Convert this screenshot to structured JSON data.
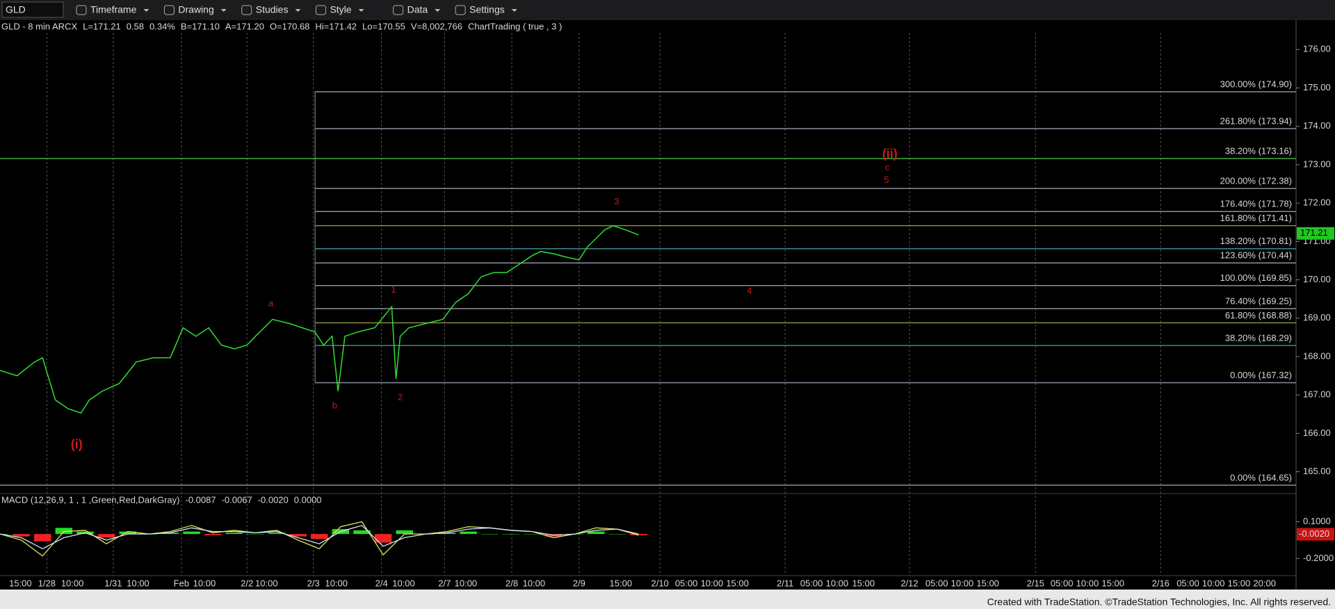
{
  "toolbar": {
    "symbol": "GLD",
    "items": [
      "Timeframe",
      "Drawing",
      "Studies",
      "Style",
      "Data",
      "Settings"
    ]
  },
  "footer": "Created with TradeStation. ©TradeStation Technologies, Inc. All rights reserved.",
  "chart_data": {
    "type": "line",
    "header": [
      {
        "text": "GLD - 8 min  ARCX",
        "color": "#e0e0e0"
      },
      {
        "text": "L=171.21",
        "color": "#3ddc3d"
      },
      {
        "text": "0.58",
        "color": "#3ddc3d"
      },
      {
        "text": "0.34%",
        "color": "#3ddc3d"
      },
      {
        "text": "B=171.10",
        "color": "#e0e0e0"
      },
      {
        "text": "A=171.20",
        "color": "#e0e0e0"
      },
      {
        "text": "O=170.68",
        "color": "#3ddc3d"
      },
      {
        "text": "Hi=171.42",
        "color": "#e0e0e0"
      },
      {
        "text": "Lo=170.55",
        "color": "#e0e0e0"
      },
      {
        "text": "V=8,002,766",
        "color": "#e0e0e0"
      },
      {
        "text": "ChartTrading ( true , 3 )",
        "color": "#e0e0e0"
      }
    ],
    "xlim": [
      0,
      1522
    ],
    "xticks": [
      {
        "value": 24,
        "label": "15:00"
      },
      {
        "value": 55,
        "label": "1/28"
      },
      {
        "value": 85,
        "label": "10:00"
      },
      {
        "value": 133,
        "label": "1/31"
      },
      {
        "value": 162,
        "label": "10:00"
      },
      {
        "value": 213,
        "label": "Feb"
      },
      {
        "value": 240,
        "label": "10:00"
      },
      {
        "value": 290,
        "label": "2/2"
      },
      {
        "value": 313,
        "label": "10:00"
      },
      {
        "value": 368,
        "label": "2/3"
      },
      {
        "value": 395,
        "label": "10:00"
      },
      {
        "value": 448,
        "label": "2/4"
      },
      {
        "value": 474,
        "label": "10:00"
      },
      {
        "value": 522,
        "label": "2/7"
      },
      {
        "value": 547,
        "label": "10:00"
      },
      {
        "value": 601,
        "label": "2/8"
      },
      {
        "value": 627,
        "label": "10:00"
      },
      {
        "value": 680,
        "label": "2/9"
      },
      {
        "value": 729,
        "label": "15:00"
      },
      {
        "value": 775,
        "label": "2/10"
      },
      {
        "value": 806,
        "label": "05:00"
      },
      {
        "value": 836,
        "label": "10:00"
      },
      {
        "value": 866,
        "label": "15:00"
      },
      {
        "value": 922,
        "label": "2/11"
      },
      {
        "value": 953,
        "label": "05:00"
      },
      {
        "value": 983,
        "label": "10:00"
      },
      {
        "value": 1014,
        "label": "15:00"
      },
      {
        "value": 1068,
        "label": "2/12"
      },
      {
        "value": 1100,
        "label": "05:00"
      },
      {
        "value": 1130,
        "label": "10:00"
      },
      {
        "value": 1160,
        "label": "15:00"
      },
      {
        "value": 1216,
        "label": "2/15"
      },
      {
        "value": 1247,
        "label": "05:00"
      },
      {
        "value": 1277,
        "label": "10:00"
      },
      {
        "value": 1307,
        "label": "15:00"
      },
      {
        "value": 1363,
        "label": "2/16"
      },
      {
        "value": 1395,
        "label": "05:00"
      },
      {
        "value": 1425,
        "label": "10:00"
      },
      {
        "value": 1455,
        "label": "15:00"
      },
      {
        "value": 1485,
        "label": "20:00"
      }
    ],
    "ylim": [
      164.43,
      176.73
    ],
    "yticks": [
      {
        "value": 176,
        "label": "176.00"
      },
      {
        "value": 175,
        "label": "175.00"
      },
      {
        "value": 174,
        "label": "174.00"
      },
      {
        "value": 173,
        "label": "173.00"
      },
      {
        "value": 172,
        "label": "172.00"
      },
      {
        "value": 171,
        "label": "171.00"
      },
      {
        "value": 170,
        "label": "170.00"
      },
      {
        "value": 169,
        "label": "169.00"
      },
      {
        "value": 168,
        "label": "168.00"
      },
      {
        "value": 167,
        "label": "167.00"
      },
      {
        "value": 166,
        "label": "166.00"
      },
      {
        "value": 165,
        "label": "165.00"
      }
    ],
    "last_price": {
      "value": 171.21,
      "label": "171.21",
      "color": "#22c522"
    },
    "series": [
      {
        "name": "GLD",
        "color": "#2fe02f",
        "x": [
          0,
          20,
          40,
          50,
          65,
          80,
          95,
          105,
          120,
          140,
          160,
          180,
          200,
          215,
          230,
          245,
          260,
          275,
          290,
          300,
          310,
          320,
          340,
          355,
          370,
          380,
          390,
          397,
          405,
          420,
          440,
          460,
          465,
          470,
          480,
          500,
          520,
          535,
          550,
          565,
          580,
          595,
          610,
          625,
          635,
          650,
          665,
          680,
          690,
          700,
          710,
          720,
          735,
          750
        ],
        "values": [
          167.64,
          167.5,
          167.85,
          167.97,
          166.87,
          166.64,
          166.53,
          166.87,
          167.1,
          167.3,
          167.86,
          167.97,
          167.97,
          168.75,
          168.53,
          168.75,
          168.3,
          168.2,
          168.3,
          168.53,
          168.75,
          168.97,
          168.86,
          168.75,
          168.64,
          168.3,
          168.53,
          167.1,
          168.53,
          168.64,
          168.75,
          169.3,
          167.42,
          168.53,
          168.75,
          168.86,
          168.97,
          169.41,
          169.64,
          170.08,
          170.19,
          170.19,
          170.41,
          170.63,
          170.74,
          170.68,
          170.59,
          170.52,
          170.86,
          171.08,
          171.3,
          171.41,
          171.3,
          171.17
        ]
      }
    ],
    "fib_start_x": 370,
    "levels": [
      {
        "label": "300.00% (174.90)",
        "value": 174.9,
        "color": "#8a90a0"
      },
      {
        "label": "261.80% (173.94)",
        "value": 173.94,
        "color": "#8a90a0"
      },
      {
        "label": "38.20% (173.16)",
        "value": 173.16,
        "color": "#3fae3f",
        "full": true
      },
      {
        "label": "200.00% (172.38)",
        "value": 172.38,
        "color": "#8a90a0"
      },
      {
        "label": "176.40% (171.78)",
        "value": 171.78,
        "color": "#8a90a0"
      },
      {
        "label": "161.80% (171.41)",
        "value": 171.41,
        "color": "#8c8c3a"
      },
      {
        "label": "138.20% (170.81)",
        "value": 170.81,
        "color": "#3a8c8c"
      },
      {
        "label": "123.60% (170.44)",
        "value": 170.44,
        "color": "#8a90a0"
      },
      {
        "label": "100.00% (169.85)",
        "value": 169.85,
        "color": "#8a90a0"
      },
      {
        "label": "76.40% (169.25)",
        "value": 169.25,
        "color": "#8a90a0"
      },
      {
        "label": "61.80% (168.88)",
        "value": 168.88,
        "color": "#8c8c3a"
      },
      {
        "label": "38.20% (168.29)",
        "value": 168.29,
        "color": "#3a8c8c"
      },
      {
        "label": "0.00% (167.32)",
        "value": 167.32,
        "color": "#8a90a0"
      },
      {
        "label": "0.00% (164.65)",
        "value": 164.65,
        "color": "#8a90a0",
        "full": true
      }
    ],
    "annotations": [
      {
        "text": "(i)",
        "x": 90,
        "y": 165.69,
        "big": true
      },
      {
        "text": "a",
        "x": 318,
        "y": 169.37
      },
      {
        "text": "b",
        "x": 393,
        "y": 166.71
      },
      {
        "text": "1",
        "x": 462,
        "y": 169.73
      },
      {
        "text": "2",
        "x": 470,
        "y": 166.93
      },
      {
        "text": "3",
        "x": 724,
        "y": 172.03
      },
      {
        "text": "4",
        "x": 880,
        "y": 169.7
      },
      {
        "text": "(ii)",
        "x": 1045,
        "y": 173.27,
        "big": true
      },
      {
        "text": "c",
        "x": 1042,
        "y": 172.92
      },
      {
        "text": "5",
        "x": 1041,
        "y": 172.59
      }
    ],
    "macd": {
      "title": "MACD (12,26,9, 1 , 1 ,Green,Red,DarkGray)",
      "readings": [
        {
          "text": "-0.0087",
          "color": "#e6e65a"
        },
        {
          "text": "-0.0067",
          "color": "#7fd4ff"
        },
        {
          "text": "-0.0020",
          "color": "#ff4040"
        },
        {
          "text": "0.0000",
          "color": "#3ddc3d"
        }
      ],
      "ylim": [
        -0.34,
        0.33
      ],
      "yticks": [
        {
          "value": 0.1,
          "label": "0.1000"
        },
        {
          "value": -0.2,
          "label": "-0.2000"
        }
      ],
      "x": [
        0,
        25,
        50,
        75,
        100,
        125,
        150,
        175,
        200,
        225,
        250,
        275,
        300,
        325,
        350,
        375,
        400,
        425,
        450,
        475,
        500,
        525,
        550,
        575,
        600,
        625,
        650,
        675,
        700,
        725,
        750
      ],
      "series": [
        {
          "name": "MACD",
          "color": "#e6e65a",
          "values": [
            0.0,
            -0.05,
            -0.18,
            0.02,
            0.03,
            -0.08,
            0.02,
            0.0,
            0.02,
            0.07,
            0.01,
            0.03,
            0.01,
            0.03,
            -0.05,
            -0.12,
            0.06,
            0.1,
            -0.17,
            0.0,
            0.0,
            0.02,
            0.06,
            0.05,
            0.03,
            0.02,
            -0.03,
            0.0,
            0.05,
            0.04,
            -0.01
          ]
        },
        {
          "name": "Signal",
          "color": "#cfe8ff",
          "values": [
            0.0,
            -0.03,
            -0.12,
            -0.03,
            0.01,
            -0.05,
            0.0,
            0.0,
            0.01,
            0.05,
            0.02,
            0.02,
            0.01,
            0.02,
            -0.03,
            -0.08,
            0.02,
            0.07,
            -0.1,
            -0.03,
            0.0,
            0.01,
            0.04,
            0.05,
            0.03,
            0.02,
            -0.01,
            0.0,
            0.03,
            0.04,
            0.0
          ]
        }
      ],
      "hist": [
        0,
        -0.02,
        -0.06,
        0.05,
        0.02,
        -0.03,
        0.02,
        0,
        0.01,
        0.02,
        -0.01,
        0.01,
        0,
        0.01,
        -0.02,
        -0.04,
        0.04,
        0.03,
        -0.07,
        0.03,
        0,
        0.01,
        0.02,
        0,
        0,
        0,
        -0.02,
        0,
        0.02,
        0,
        -0.01
      ],
      "up_color": "#22dd22",
      "down_color": "#ee2222",
      "tag": {
        "value": -0.002,
        "label": "-0.0020",
        "color": "#cc1111"
      }
    }
  }
}
